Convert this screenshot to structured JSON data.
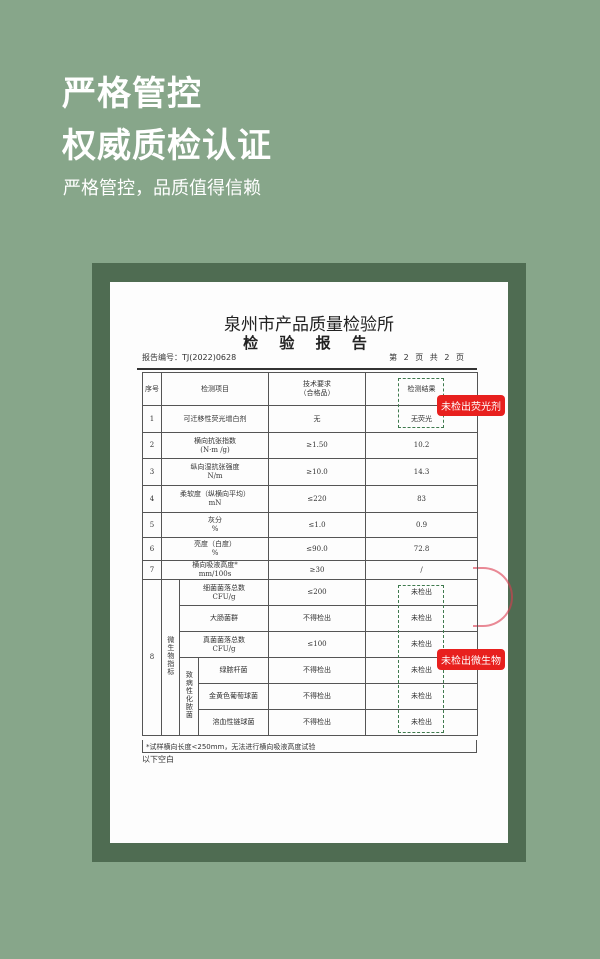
{
  "headline": {
    "line1": "严格管控",
    "line2": "权威质检认证",
    "subtitle": "严格管控，品质值得信赖"
  },
  "report": {
    "institute": "泉州市产品质量检验所",
    "title": "检 验 报 告",
    "report_no": "报告编号：TJ(2022)0628",
    "page": "第 2 页 共 2 页",
    "headers": {
      "seq": "序号",
      "item": "检测项目",
      "requirement": "技术要求\n（合格品）",
      "result": "检测结果"
    },
    "rows": [
      {
        "seq": "1",
        "item": "可迁移性荧光增白剂",
        "unit": "",
        "req": "无",
        "result": "无荧光"
      },
      {
        "seq": "2",
        "item": "横向抗张指数",
        "unit": "(N·m /g)",
        "req": "≥1.50",
        "result": "10.2"
      },
      {
        "seq": "3",
        "item": "纵向湿抗张强度",
        "unit": "N/m",
        "req": "≥10.0",
        "result": "14.3"
      },
      {
        "seq": "4",
        "item": "柔软度（纵横向平均）",
        "unit": "mN",
        "req": "≤220",
        "result": "83"
      },
      {
        "seq": "5",
        "item": "灰分",
        "unit": "%",
        "req": "≤1.0",
        "result": "0.9"
      },
      {
        "seq": "6",
        "item": "亮度（白度）",
        "unit": "%",
        "req": "≤90.0",
        "result": "72.8"
      },
      {
        "seq": "7",
        "item": "横向吸液高度*",
        "unit": "mm/100s",
        "req": "≥30",
        "result": "/"
      }
    ],
    "micro": {
      "seq": "8",
      "group": "微生物指标",
      "pathogen_group": "致病性化脓菌",
      "rows": [
        {
          "item": "细菌菌落总数",
          "unit": "CFU/g",
          "req": "≤200",
          "result": "未检出"
        },
        {
          "item": "大肠菌群",
          "unit": "",
          "req": "不得检出",
          "result": "未检出"
        },
        {
          "item": "真菌菌落总数",
          "unit": "CFU/g",
          "req": "≤100",
          "result": "未检出"
        },
        {
          "item": "绿脓杆菌",
          "unit": "",
          "req": "不得检出",
          "result": "未检出"
        },
        {
          "item": "金黄色葡萄球菌",
          "unit": "",
          "req": "不得检出",
          "result": "未检出"
        },
        {
          "item": "溶血性链球菌",
          "unit": "",
          "req": "不得检出",
          "result": "未检出"
        }
      ]
    },
    "note": "*试样横向长度<250mm，无法进行横向吸液高度试验",
    "blank": "以下空白"
  },
  "badges": {
    "fluorescent": "未检出荧光剂",
    "microbe": "未检出微生物"
  },
  "colors": {
    "background": "#87a68a",
    "frame": "#4f6c52",
    "badge": "#e8201e",
    "dash": "#3f7a4e"
  }
}
